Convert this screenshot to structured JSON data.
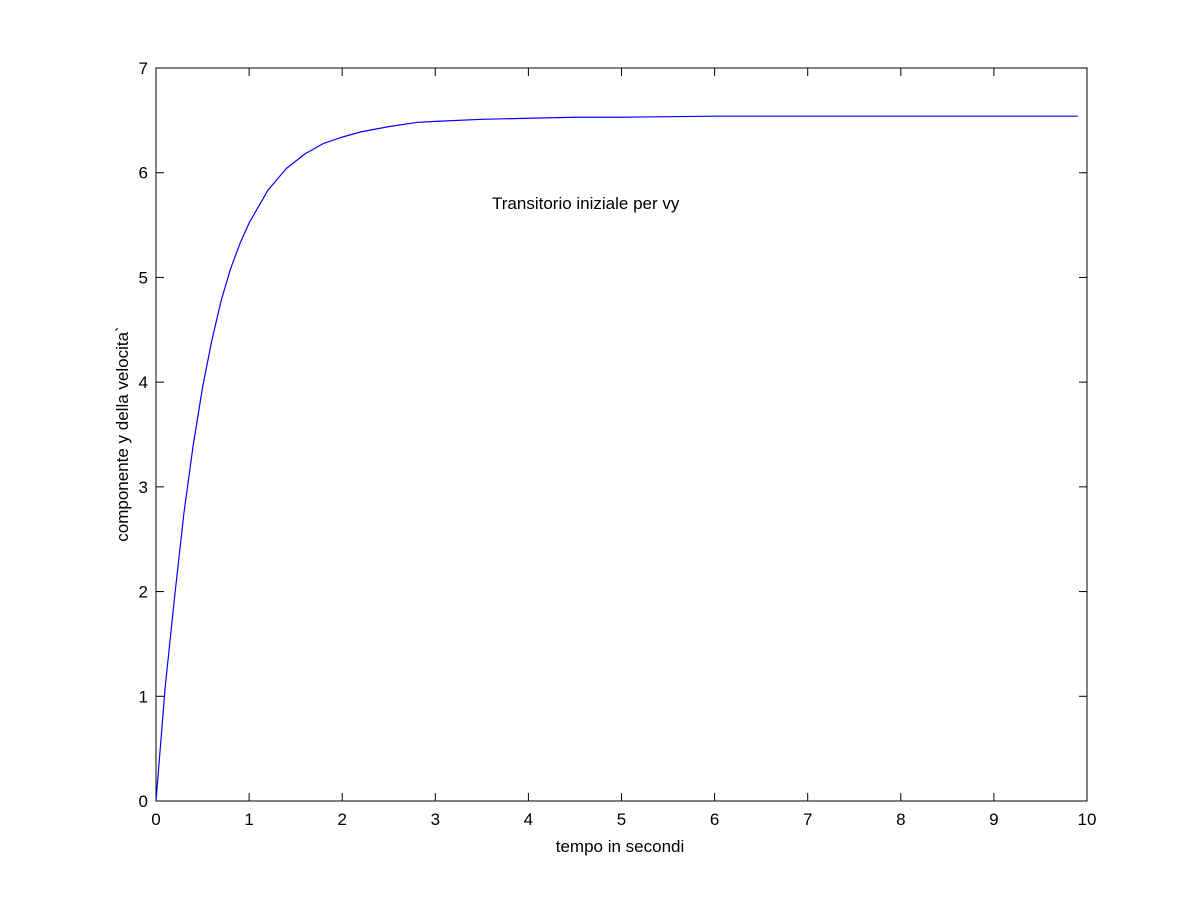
{
  "chart_data": {
    "type": "line",
    "title": "",
    "xlabel": "tempo in secondi",
    "ylabel": "componente y della velocita`",
    "xlim": [
      0,
      10
    ],
    "ylim": [
      0,
      7
    ],
    "xticks": [
      "0",
      "1",
      "2",
      "3",
      "4",
      "5",
      "6",
      "7",
      "8",
      "9",
      "10"
    ],
    "yticks": [
      "0",
      "1",
      "2",
      "3",
      "4",
      "5",
      "6",
      "7"
    ],
    "grid": false,
    "annotation": "Transitorio iniziale per vy",
    "series": [
      {
        "color": "#0000ff",
        "x": [
          0,
          0.1,
          0.2,
          0.3,
          0.4,
          0.5,
          0.6,
          0.7,
          0.8,
          0.9,
          1.0,
          1.2,
          1.4,
          1.6,
          1.8,
          2.0,
          2.2,
          2.5,
          2.8,
          3.0,
          3.5,
          4.0,
          4.5,
          5.0,
          6.0,
          7.0,
          8.0,
          9.0,
          9.9
        ],
        "y": [
          0,
          1.1,
          1.95,
          2.75,
          3.4,
          3.95,
          4.4,
          4.78,
          5.08,
          5.32,
          5.52,
          5.83,
          6.04,
          6.18,
          6.28,
          6.34,
          6.39,
          6.44,
          6.48,
          6.49,
          6.51,
          6.52,
          6.53,
          6.53,
          6.54,
          6.54,
          6.54,
          6.54,
          6.54
        ]
      }
    ]
  }
}
